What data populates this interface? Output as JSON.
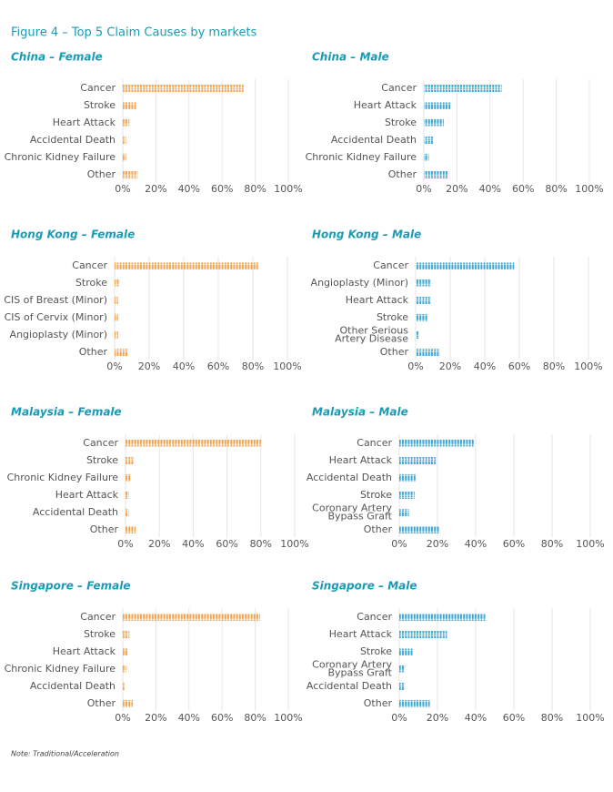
{
  "title": "Figure 4 – Top 5 Claim Causes by markets",
  "note": "Note: Traditional/Acceleration",
  "chart_data": [
    {
      "type": "bar",
      "orientation": "horizontal",
      "title": "China – Female",
      "color": "#f5a04a",
      "categories": [
        "Cancer",
        "Stroke",
        "Heart Attack",
        "Accidental Death",
        "Chronic Kidney Failure",
        "Other"
      ],
      "values": [
        73,
        8,
        4,
        2,
        2,
        9
      ],
      "xlim": [
        0,
        100
      ],
      "grid": true,
      "xticks": [
        {
          "value": 0,
          "label": "0%"
        },
        {
          "value": 20,
          "label": "20%"
        },
        {
          "value": 40,
          "label": "40%"
        },
        {
          "value": 60,
          "label": "60%"
        },
        {
          "value": 80,
          "label": "80%"
        },
        {
          "value": 100,
          "label": "100%"
        }
      ]
    },
    {
      "type": "bar",
      "orientation": "horizontal",
      "title": "China – Male",
      "color": "#3aa6d6",
      "categories": [
        "Cancer",
        "Heart Attack",
        "Stroke",
        "Accidental Death",
        "Chronic Kidney Failure",
        "Other"
      ],
      "values": [
        47,
        16,
        12,
        6,
        3,
        15
      ],
      "xlim": [
        0,
        100
      ],
      "grid": true,
      "xticks": [
        {
          "value": 0,
          "label": "0%"
        },
        {
          "value": 20,
          "label": "20%"
        },
        {
          "value": 40,
          "label": "40%"
        },
        {
          "value": 60,
          "label": "60%"
        },
        {
          "value": 80,
          "label": "80%"
        },
        {
          "value": 100,
          "label": "100%"
        }
      ]
    },
    {
      "type": "bar",
      "orientation": "horizontal",
      "title": "Hong Kong – Female",
      "color": "#f5a04a",
      "categories": [
        "Cancer",
        "Stroke",
        "CIS of Breast (Minor)",
        "CIS of Cervix (Minor)",
        "Angioplasty (Minor)",
        "Other"
      ],
      "values": [
        83,
        3,
        2,
        2,
        2,
        8
      ],
      "xlim": [
        0,
        100
      ],
      "grid": true,
      "xticks": [
        {
          "value": 0,
          "label": "0%"
        },
        {
          "value": 20,
          "label": "20%"
        },
        {
          "value": 40,
          "label": "40%"
        },
        {
          "value": 60,
          "label": "60%"
        },
        {
          "value": 80,
          "label": "80%"
        },
        {
          "value": 100,
          "label": "100%"
        }
      ]
    },
    {
      "type": "bar",
      "orientation": "horizontal",
      "title": "Hong Kong – Male",
      "color": "#3aa6d6",
      "categories": [
        "Cancer",
        "Angioplasty (Minor)",
        "Heart Attack",
        "Stroke",
        "Other Serious\nArtery Disease",
        "Other"
      ],
      "values": [
        57,
        9,
        9,
        7,
        2,
        14
      ],
      "xlim": [
        0,
        100
      ],
      "grid": true,
      "xticks": [
        {
          "value": 0,
          "label": "0%"
        },
        {
          "value": 20,
          "label": "20%"
        },
        {
          "value": 40,
          "label": "40%"
        },
        {
          "value": 60,
          "label": "60%"
        },
        {
          "value": 80,
          "label": "80%"
        },
        {
          "value": 100,
          "label": "100%"
        }
      ]
    },
    {
      "type": "bar",
      "orientation": "horizontal",
      "title": "Malaysia – Female",
      "color": "#f5a04a",
      "categories": [
        "Cancer",
        "Stroke",
        "Chronic Kidney Failure",
        "Heart Attack",
        "Accidental Death",
        "Other"
      ],
      "values": [
        80,
        5,
        3,
        2,
        2,
        6
      ],
      "xlim": [
        0,
        100
      ],
      "grid": true,
      "xticks": [
        {
          "value": 0,
          "label": "0%"
        },
        {
          "value": 20,
          "label": "20%"
        },
        {
          "value": 40,
          "label": "40%"
        },
        {
          "value": 60,
          "label": "60%"
        },
        {
          "value": 80,
          "label": "80%"
        },
        {
          "value": 100,
          "label": "100%"
        }
      ]
    },
    {
      "type": "bar",
      "orientation": "horizontal",
      "title": "Malaysia – Male",
      "color": "#3aa6d6",
      "categories": [
        "Cancer",
        "Heart Attack",
        "Accidental Death",
        "Stroke",
        "Coronary Artery\nBypass Graft",
        "Other"
      ],
      "values": [
        39,
        19,
        9,
        8,
        5,
        21
      ],
      "xlim": [
        0,
        100
      ],
      "grid": true,
      "xticks": [
        {
          "value": 0,
          "label": "0%"
        },
        {
          "value": 20,
          "label": "20%"
        },
        {
          "value": 40,
          "label": "40%"
        },
        {
          "value": 60,
          "label": "60%"
        },
        {
          "value": 80,
          "label": "80%"
        },
        {
          "value": 100,
          "label": "100%"
        }
      ]
    },
    {
      "type": "bar",
      "orientation": "horizontal",
      "title": "Singapore – Female",
      "color": "#f5a04a",
      "categories": [
        "Cancer",
        "Stroke",
        "Heart Attack",
        "Chronic Kidney Failure",
        "Accidental Death",
        "Other"
      ],
      "values": [
        83,
        4,
        3,
        2,
        1,
        6
      ],
      "xlim": [
        0,
        100
      ],
      "grid": true,
      "xticks": [
        {
          "value": 0,
          "label": "0%"
        },
        {
          "value": 20,
          "label": "20%"
        },
        {
          "value": 40,
          "label": "40%"
        },
        {
          "value": 60,
          "label": "60%"
        },
        {
          "value": 80,
          "label": "80%"
        },
        {
          "value": 100,
          "label": "100%"
        }
      ]
    },
    {
      "type": "bar",
      "orientation": "horizontal",
      "title": "Singapore – Male",
      "color": "#3aa6d6",
      "categories": [
        "Cancer",
        "Heart Attack",
        "Stroke",
        "Coronary Artery\nBypass Graft",
        "Accidental Death",
        "Other"
      ],
      "values": [
        45,
        25,
        7,
        3,
        3,
        16
      ],
      "xlim": [
        0,
        100
      ],
      "grid": true,
      "xticks": [
        {
          "value": 0,
          "label": "0%"
        },
        {
          "value": 20,
          "label": "20%"
        },
        {
          "value": 40,
          "label": "40%"
        },
        {
          "value": 60,
          "label": "60%"
        },
        {
          "value": 80,
          "label": "80%"
        },
        {
          "value": 100,
          "label": "100%"
        }
      ]
    }
  ]
}
